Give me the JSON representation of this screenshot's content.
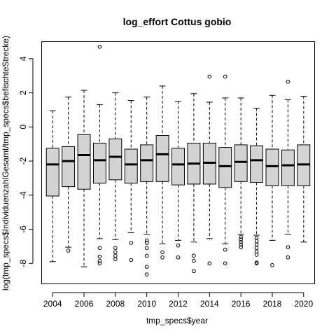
{
  "chart_data": {
    "type": "box",
    "title": "log_effort Cottus gobio",
    "xlabel": "tmp_specs$year",
    "ylabel": "log(tmp_specs$IndividuenzahlGesamt/tmp_specs$befischteStrecke)",
    "ylim": [
      -9.2,
      5.0
    ],
    "yticks": [
      -8,
      -6,
      -4,
      -2,
      0,
      2,
      4
    ],
    "xtick_labels": [
      "2004",
      "2006",
      "2008",
      "2010",
      "2012",
      "2014",
      "2016",
      "2018",
      "2020"
    ],
    "box_fill": "#d3d3d3",
    "grid": false,
    "boxes": [
      {
        "year": 2004,
        "whisker_low": -7.9,
        "q1": -4.05,
        "median": -2.2,
        "q3": -1.25,
        "whisker_high": 0.95,
        "outliers": []
      },
      {
        "year": 2005,
        "whisker_low": -7.05,
        "q1": -3.5,
        "median": -2.0,
        "q3": -1.15,
        "whisker_high": 1.75,
        "outliers": [
          -7.25
        ]
      },
      {
        "year": 2006,
        "whisker_low": -8.2,
        "q1": -3.65,
        "median": -1.65,
        "q3": -0.45,
        "whisker_high": 2.15,
        "outliers": []
      },
      {
        "year": 2007,
        "whisker_low": -6.55,
        "q1": -3.3,
        "median": -1.95,
        "q3": -0.95,
        "whisker_high": 1.3,
        "outliers": [
          4.7,
          -7.1,
          -7.6,
          -7.85,
          -8.0
        ]
      },
      {
        "year": 2008,
        "whisker_low": -6.6,
        "q1": -3.1,
        "median": -1.75,
        "q3": -0.7,
        "whisker_high": 2.0,
        "outliers": [
          -7.1,
          -7.35,
          -7.55,
          -7.75
        ]
      },
      {
        "year": 2009,
        "whisker_low": -6.2,
        "q1": -3.3,
        "median": -2.2,
        "q3": -1.3,
        "whisker_high": 1.55,
        "outliers": [
          -6.8,
          -7.8
        ]
      },
      {
        "year": 2010,
        "whisker_low": -6.3,
        "q1": -3.2,
        "median": -1.95,
        "q3": -1.05,
        "whisker_high": 1.75,
        "outliers": [
          -6.65,
          -6.8,
          -7.1,
          -7.55,
          -8.2,
          -8.65
        ]
      },
      {
        "year": 2011,
        "whisker_low": -6.85,
        "q1": -3.2,
        "median": -1.6,
        "q3": -0.5,
        "whisker_high": 2.4,
        "outliers": [
          -7.35,
          -7.65
        ]
      },
      {
        "year": 2012,
        "whisker_low": -6.65,
        "q1": -3.4,
        "median": -2.2,
        "q3": -1.25,
        "whisker_high": 1.5,
        "outliers": [
          -6.95,
          -7.65
        ]
      },
      {
        "year": 2013,
        "whisker_low": -6.75,
        "q1": -3.35,
        "median": -2.15,
        "q3": -0.95,
        "whisker_high": 1.95,
        "outliers": [
          -7.55,
          -7.85,
          -8.45
        ]
      },
      {
        "year": 2014,
        "whisker_low": -6.55,
        "q1": -3.35,
        "median": -2.1,
        "q3": -0.95,
        "whisker_high": 1.45,
        "outliers": [
          2.95,
          -8.0
        ]
      },
      {
        "year": 2015,
        "whisker_low": -6.85,
        "q1": -3.55,
        "median": -2.3,
        "q3": -1.2,
        "whisker_high": 1.7,
        "outliers": [
          2.95,
          -7.2,
          -8.0
        ]
      },
      {
        "year": 2016,
        "whisker_low": -6.3,
        "q1": -3.2,
        "median": -2.05,
        "q3": -1.05,
        "whisker_high": 1.7,
        "outliers": [
          -6.45,
          -6.6,
          -6.75,
          -6.9,
          -7.05
        ]
      },
      {
        "year": 2017,
        "whisker_low": -6.35,
        "q1": -3.25,
        "median": -1.95,
        "q3": -1.1,
        "whisker_high": 1.1,
        "outliers": [
          -6.5,
          -6.7,
          -6.9,
          -7.1,
          -7.3,
          -7.5,
          -7.95,
          -8.0
        ]
      },
      {
        "year": 2018,
        "whisker_low": -6.65,
        "q1": -3.45,
        "median": -2.3,
        "q3": -1.3,
        "whisker_high": 1.85,
        "outliers": [
          -8.1
        ]
      },
      {
        "year": 2019,
        "whisker_low": -6.3,
        "q1": -3.45,
        "median": -2.25,
        "q3": -1.35,
        "whisker_high": 1.6,
        "outliers": [
          2.65,
          -7.05,
          -7.65
        ]
      },
      {
        "year": 2020,
        "whisker_low": -6.75,
        "q1": -3.45,
        "median": -2.2,
        "q3": -1.05,
        "whisker_high": 1.8,
        "outliers": []
      }
    ]
  }
}
